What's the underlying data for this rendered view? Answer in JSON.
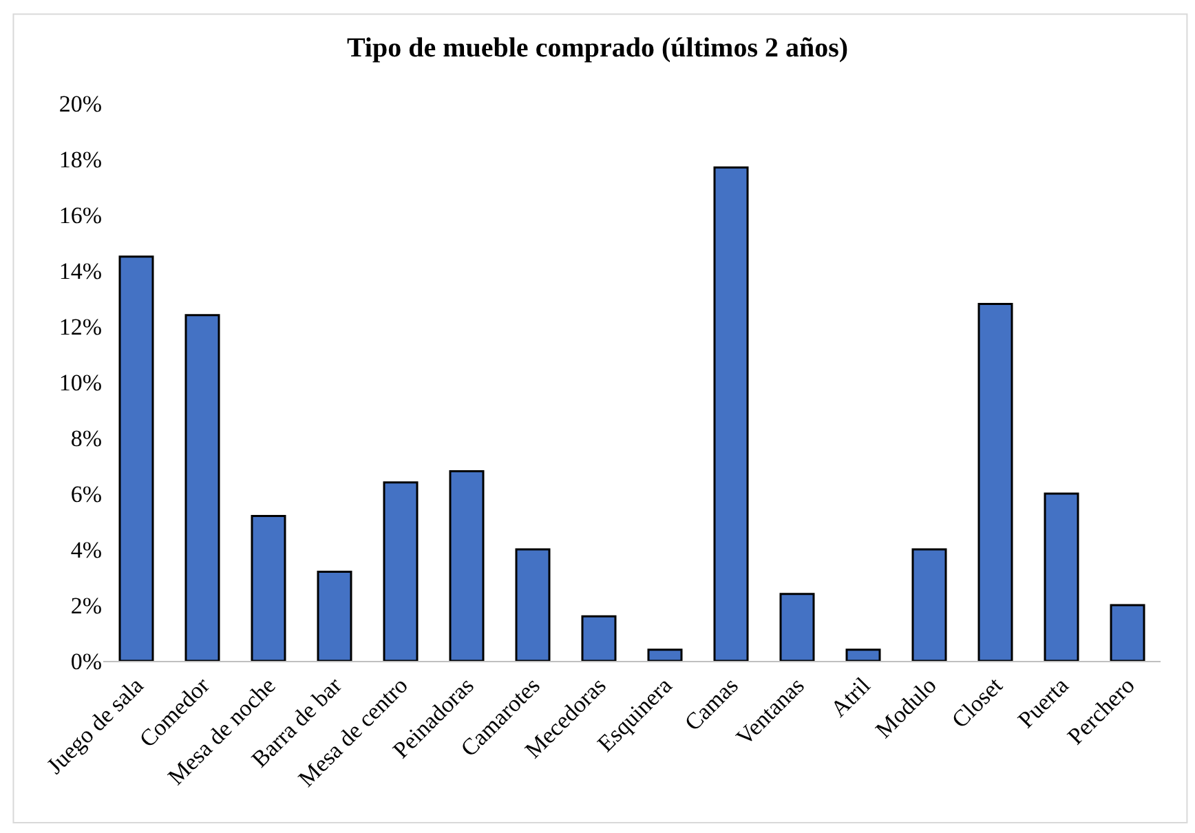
{
  "chart_data": {
    "type": "bar",
    "title": "Tipo de mueble comprado (últimos 2 años)",
    "categories": [
      "Juego de sala",
      "Comedor",
      "Mesa de noche",
      "Barra de bar",
      "Mesa de centro",
      "Peinadoras",
      "Camarotes",
      "Mecedoras",
      "Esquinera",
      "Camas",
      "Ventanas",
      "Atril",
      "Modulo",
      "Closet",
      "Puerta",
      "Perchero"
    ],
    "values": [
      14.5,
      12.4,
      5.2,
      3.2,
      6.4,
      6.8,
      4.0,
      1.6,
      0.4,
      17.7,
      2.4,
      0.4,
      4.0,
      12.8,
      6.0,
      2.0
    ],
    "color": "#4472c4",
    "ylim": [
      0,
      20
    ],
    "data_labels": false,
    "yticks": [
      {
        "value": 0,
        "label": "0%"
      },
      {
        "value": 2,
        "label": "2%"
      },
      {
        "value": 4,
        "label": "4%"
      },
      {
        "value": 6,
        "label": "6%"
      },
      {
        "value": 8,
        "label": "8%"
      },
      {
        "value": 10,
        "label": "10%"
      },
      {
        "value": 12,
        "label": "12%"
      },
      {
        "value": 14,
        "label": "14%"
      },
      {
        "value": 16,
        "label": "16%"
      },
      {
        "value": 18,
        "label": "18%"
      },
      {
        "value": 20,
        "label": "20%"
      }
    ],
    "legend": false
  }
}
